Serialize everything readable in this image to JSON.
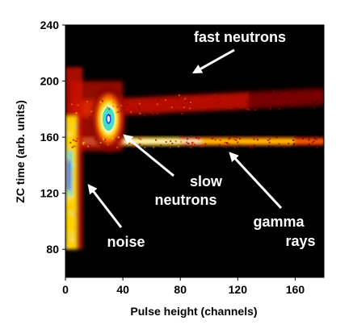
{
  "chart_data": {
    "type": "heatmap",
    "xlabel": "Pulse height (channels)",
    "ylabel": "ZC time (arb. units)",
    "xlim": [
      0,
      180
    ],
    "ylim": [
      60,
      240
    ],
    "xticks": [
      0,
      40,
      80,
      120,
      160
    ],
    "yticks": [
      80,
      120,
      160,
      200,
      240
    ],
    "colormap": [
      "#000000",
      "#3a0000",
      "#8a0000",
      "#d01000",
      "#ff6a00",
      "#ffd400",
      "#ffffc8",
      "#40e0c0",
      "#2040ff"
    ],
    "background": "#000000",
    "bands": [
      {
        "name": "gamma_rays",
        "x_start": 3,
        "x_end": 180,
        "y_center": 157,
        "y_width": 3,
        "intensity": [
          0.75,
          0.45
        ]
      },
      {
        "name": "fast_neutrons",
        "x_start": 5,
        "x_end": 180,
        "y_center_start": 180,
        "y_center_end": 189,
        "y_width": 6,
        "intensity": [
          0.6,
          0.3
        ]
      },
      {
        "name": "noise_column",
        "x_start": 0,
        "x_end": 8,
        "y_start": 80,
        "y_end": 175,
        "intensity": 0.9
      },
      {
        "name": "slow_neutrons_hotspot",
        "x_center": 30,
        "y_center": 173,
        "x_radius": 6,
        "y_radius": 12,
        "intensity": 1.0
      }
    ],
    "annotations": [
      {
        "text": "fast neutrons",
        "lines": [
          "fast neutrons"
        ]
      },
      {
        "text": "slow neutrons",
        "lines": [
          "slow",
          "neutrons"
        ]
      },
      {
        "text": "gamma rays",
        "lines": [
          "gamma",
          "rays"
        ]
      },
      {
        "text": "noise",
        "lines": [
          "noise"
        ]
      }
    ]
  }
}
